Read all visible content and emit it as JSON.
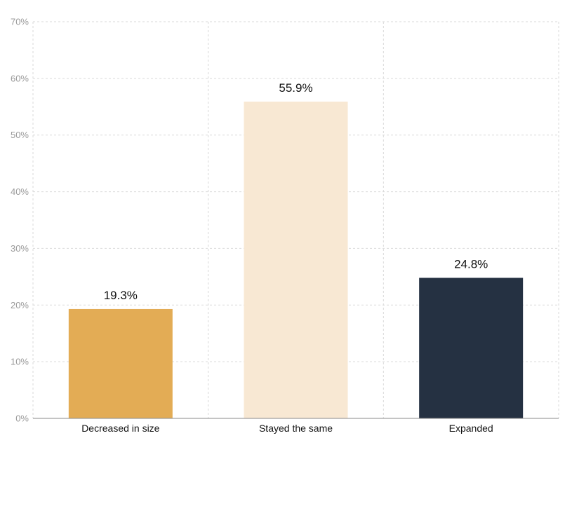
{
  "chart_data": {
    "type": "bar",
    "categories": [
      "Decreased in size",
      "Stayed the same",
      "Expanded"
    ],
    "values": [
      19.3,
      55.9,
      24.8
    ],
    "data_labels": [
      "19.3%",
      "55.9%",
      "24.8%"
    ],
    "colors": [
      "#E3AC55",
      "#F8E8D3",
      "#253142"
    ],
    "y_ticks": [
      "0%",
      "10%",
      "20%",
      "30%",
      "40%",
      "50%",
      "60%",
      "70%"
    ],
    "ylim": [
      0,
      70
    ],
    "title": "",
    "xlabel": "",
    "ylabel": "",
    "grid": true,
    "legend": "none"
  }
}
